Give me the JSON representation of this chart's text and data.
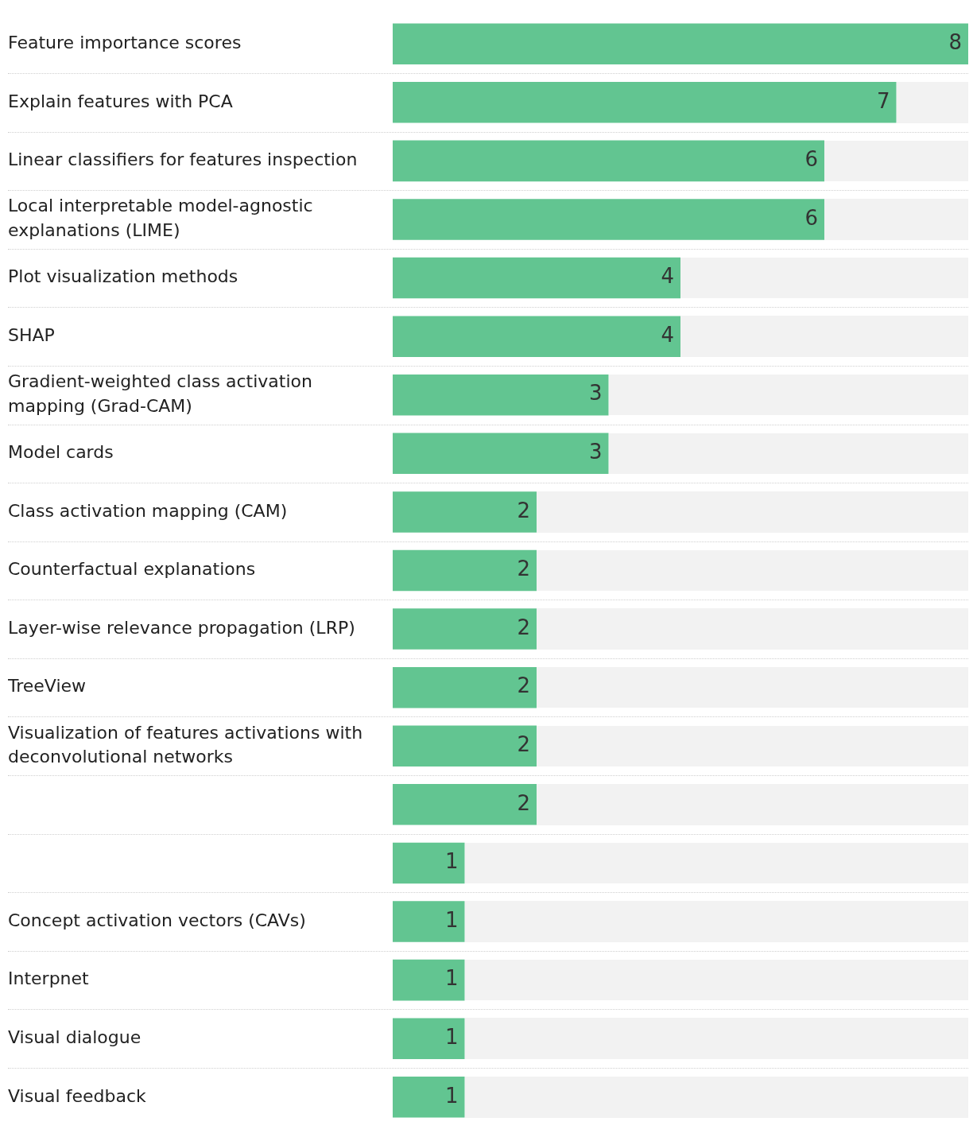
{
  "chart_data": {
    "type": "bar",
    "orientation": "horizontal",
    "categories": [
      "Feature importance scores",
      "Explain features with PCA",
      "Linear classifiers for features inspection",
      "Local interpretable model-agnostic explanations (LIME)",
      "Plot visualization methods",
      "SHAP",
      "Gradient-weighted class activation mapping (Grad-CAM)",
      "Model cards",
      "Class activation mapping (CAM)",
      "Counterfactual explanations",
      "Layer-wise relevance propagation (LRP)",
      "TreeView",
      "Visualization of features activations with deconvolutional networks",
      null,
      null,
      "Concept activation vectors (CAVs)",
      "Interpnet",
      "Visual dialogue",
      "Visual feedback"
    ],
    "values": [
      8,
      7,
      6,
      6,
      4,
      4,
      3,
      3,
      2,
      2,
      2,
      2,
      2,
      2,
      1,
      1,
      1,
      1,
      1
    ],
    "color": "#62c591",
    "xlim": [
      0,
      8
    ],
    "tick_labels": "y",
    "data_labels": true
  }
}
